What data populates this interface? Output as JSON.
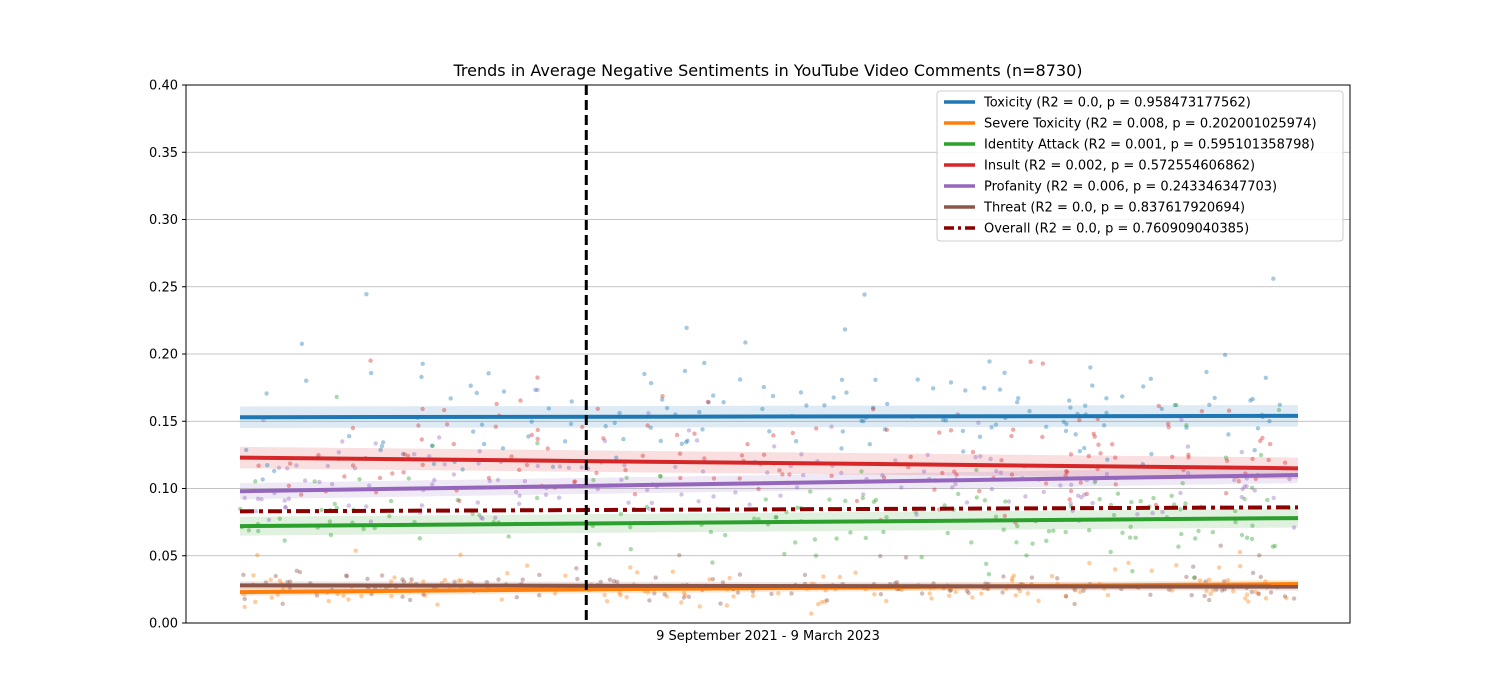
{
  "chart_data": {
    "type": "scatter",
    "title": "Trends in Average Negative Sentiments in YouTube Video Comments (n=8730)",
    "xlabel": "9 September 2021 - 9 March 2023",
    "ylabel": "",
    "ylim": [
      0,
      0.4
    ],
    "yticks": [
      "0.00",
      "0.05",
      "0.10",
      "0.15",
      "0.20",
      "0.25",
      "0.30",
      "0.35",
      "0.40"
    ],
    "grid": "horizontal",
    "legend_position": "top-right",
    "event_marker": {
      "x_fraction_of_period": 0.315,
      "style": "dashed",
      "color": "#000000"
    },
    "series": [
      {
        "name": "Toxicity (R2 = 0.0, p = 0.958473177562)",
        "color": "#1f77b4",
        "trend": [
          0.153,
          0.154
        ],
        "band": 0.008,
        "points_mean": 0.154,
        "points_spread": 0.07,
        "style": "solid"
      },
      {
        "name": "Severe Toxicity (R2 = 0.008, p = 0.202001025974)",
        "color": "#ff7f0e",
        "trend": [
          0.023,
          0.029
        ],
        "band": 0.003,
        "points_mean": 0.025,
        "points_spread": 0.022,
        "style": "solid"
      },
      {
        "name": "Identity Attack (R2 = 0.001, p = 0.595101358798)",
        "color": "#2ca02c",
        "trend": [
          0.072,
          0.078
        ],
        "band": 0.007,
        "points_mean": 0.075,
        "points_spread": 0.065,
        "style": "solid"
      },
      {
        "name": "Insult (R2 = 0.002, p = 0.572554606862)",
        "color": "#d62728",
        "trend": [
          0.123,
          0.115
        ],
        "band": 0.008,
        "points_mean": 0.12,
        "points_spread": 0.07,
        "style": "solid"
      },
      {
        "name": "Profanity (R2 = 0.006, p = 0.243346347703)",
        "color": "#9467bd",
        "trend": [
          0.098,
          0.11
        ],
        "band": 0.006,
        "points_mean": 0.104,
        "points_spread": 0.05,
        "style": "solid"
      },
      {
        "name": "Threat (R2 = 0.0, p = 0.837617920694)",
        "color": "#8c564b",
        "trend": [
          0.028,
          0.027
        ],
        "band": 0.003,
        "points_mean": 0.027,
        "points_spread": 0.018,
        "style": "solid"
      },
      {
        "name": "Overall (R2 = 0.0, p = 0.760909040385)",
        "color": "#8b0000",
        "trend": [
          0.083,
          0.086
        ],
        "band": 0,
        "points_mean": null,
        "points_spread": 0,
        "style": "dashdot"
      }
    ]
  }
}
